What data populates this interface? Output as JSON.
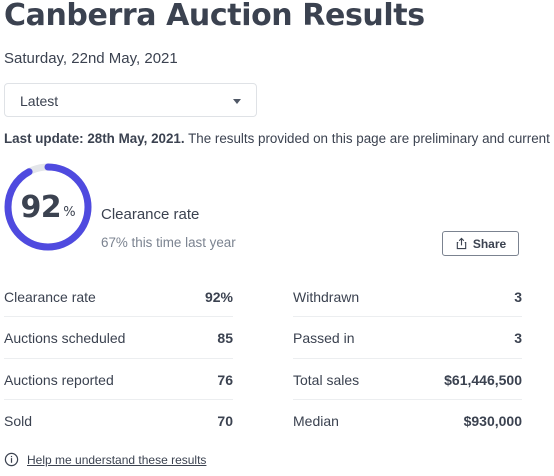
{
  "header": {
    "title": "Canberra Auction Results",
    "date": "Saturday, 22nd May, 2021"
  },
  "filter": {
    "selected": "Latest"
  },
  "update": {
    "label": "Last update: 28th May, 2021.",
    "text": " The results provided on this page are preliminary and current"
  },
  "clearance": {
    "value": "92",
    "percent_sign": "%",
    "fraction": 0.92,
    "label": "Clearance rate",
    "last_year": "67% this time last year",
    "ring_color": "#4f4adf",
    "track_color": "#e3e5e9"
  },
  "share": {
    "label": "Share"
  },
  "stats": {
    "left": [
      {
        "label": "Clearance rate",
        "value": "92%"
      },
      {
        "label": "Auctions scheduled",
        "value": "85"
      },
      {
        "label": "Auctions reported",
        "value": "76"
      },
      {
        "label": "Sold",
        "value": "70"
      }
    ],
    "right": [
      {
        "label": "Withdrawn",
        "value": "3"
      },
      {
        "label": "Passed in",
        "value": "3"
      },
      {
        "label": "Total sales",
        "value": "$61,446,500"
      },
      {
        "label": "Median",
        "value": "$930,000"
      }
    ]
  },
  "help": {
    "link": "Help me understand these results"
  }
}
